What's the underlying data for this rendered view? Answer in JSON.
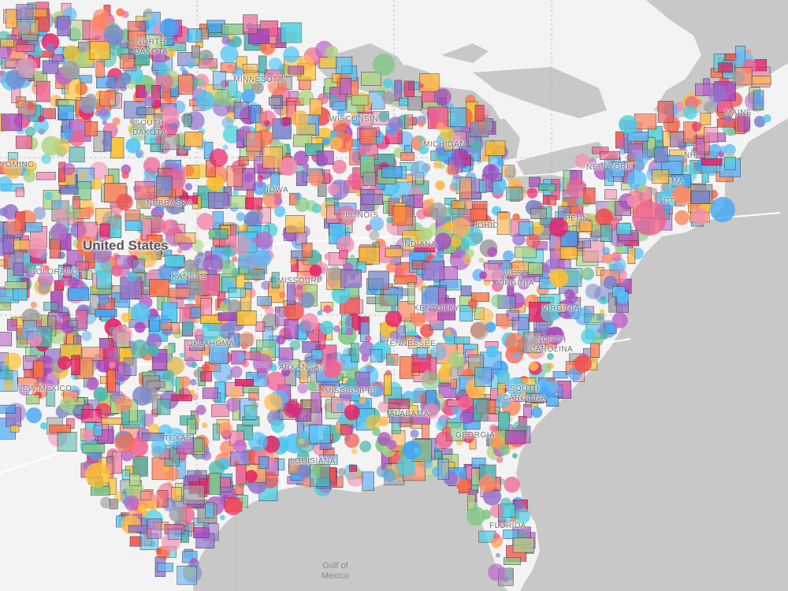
{
  "map": {
    "country_label": "United States",
    "water_label": "Gulf of\nMexico",
    "colors": {
      "land": "#f3f3f3",
      "water": "#c8c8c8",
      "road": "#ffffff",
      "boundary": "#b5b5b5"
    },
    "palette": [
      "#f06292",
      "#ba68c8",
      "#4dd0e1",
      "#ff8a65",
      "#fbc02d",
      "#81c784",
      "#7986cb",
      "#64b5f6",
      "#e91e63",
      "#ff7043",
      "#9575cd",
      "#4fc3f7",
      "#f48fb1",
      "#aed581",
      "#ffb74d",
      "#4db6ac",
      "#9e9e9e",
      "#42a5f5",
      "#ef5350",
      "#ab47bc"
    ],
    "state_labels": [
      {
        "name": "north-dakota",
        "text": "NORTH\nDAKOTA"
      },
      {
        "name": "minnesota",
        "text": "MINNESOTA"
      },
      {
        "name": "south-dakota",
        "text": "SOUTH\nDAKOTA"
      },
      {
        "name": "wisconsin",
        "text": "WISCONSIN"
      },
      {
        "name": "michigan",
        "text": "MICHIGAN"
      },
      {
        "name": "wyoming",
        "text": "YOMING"
      },
      {
        "name": "iowa",
        "text": "IOWA"
      },
      {
        "name": "nebraska",
        "text": "NEBRASKA"
      },
      {
        "name": "illinois",
        "text": "ILLINOIS"
      },
      {
        "name": "new-york",
        "text": "NEW YORK"
      },
      {
        "name": "pennsylvania",
        "text": "PENN"
      },
      {
        "name": "ohio",
        "text": "OHIO"
      },
      {
        "name": "indiana",
        "text": "INDIANA"
      },
      {
        "name": "colorado",
        "text": "COLORADO"
      },
      {
        "name": "kansas",
        "text": "KANSAS"
      },
      {
        "name": "missouri",
        "text": "MISSOURI"
      },
      {
        "name": "west-virginia",
        "text": "WEST\nVIRGINIA"
      },
      {
        "name": "virginia",
        "text": "VIRGINIA"
      },
      {
        "name": "kentucky",
        "text": "KENTUCKY"
      },
      {
        "name": "oklahoma",
        "text": "OKLAHOMA"
      },
      {
        "name": "tennessee",
        "text": "TENNESSEE"
      },
      {
        "name": "north-carolina",
        "text": "NORTH\nCAROLINA"
      },
      {
        "name": "arkansas",
        "text": "ARKANSAS"
      },
      {
        "name": "new-mexico",
        "text": "NEW MEXICO"
      },
      {
        "name": "mississippi",
        "text": "MISSISSIPPI"
      },
      {
        "name": "south-carolina",
        "text": "SOUTH\nCAROLINA"
      },
      {
        "name": "alabama",
        "text": "ALABAMA"
      },
      {
        "name": "georgia",
        "text": "GEORGIA"
      },
      {
        "name": "texas",
        "text": "TEXAS"
      },
      {
        "name": "louisiana",
        "text": "LOUISIANA"
      },
      {
        "name": "florida",
        "text": "FLORIDA"
      },
      {
        "name": "maine",
        "text": "MAINE"
      },
      {
        "name": "new-hampshire",
        "text": "NH"
      },
      {
        "name": "massachusetts",
        "text": "MA"
      },
      {
        "name": "connecticut",
        "text": "CT"
      }
    ]
  }
}
